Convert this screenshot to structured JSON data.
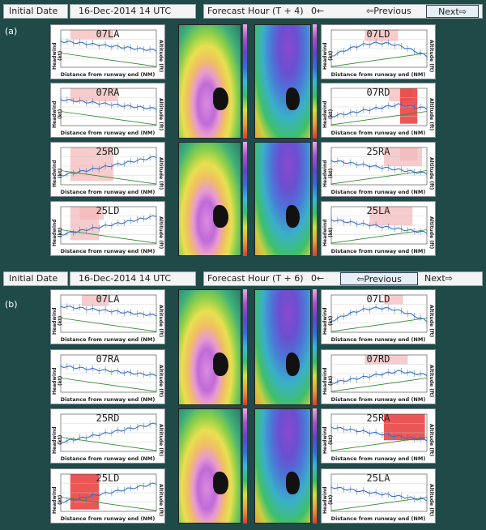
{
  "panels": [
    {
      "letter": "(a)",
      "initial_label": "Initial Date",
      "initial_value": "16-Dec-2014 14 UTC",
      "forecast_label": "Forecast Hour (T + 4)",
      "forecast_index": "0←",
      "prev_label": "⇦Previous",
      "next_label": "Next⇨",
      "runways": {
        "r1": "07LA",
        "r2": "07RA",
        "r3": "25RD",
        "r4": "25LD",
        "r5": "07LD",
        "r6": "07RD",
        "r7": "25RA",
        "r8": "25LA"
      }
    },
    {
      "letter": "(b)",
      "initial_label": "Initial Date",
      "initial_value": "16-Dec-2014 14 UTC",
      "forecast_label": "Forecast Hour (T + 6)",
      "forecast_index": "0←",
      "prev_label": "⇦Previous",
      "next_label": "Next⇨",
      "runways": {
        "r1": "07LA",
        "r2": "07RA",
        "r3": "25RD",
        "r4": "25LD",
        "r5": "07LD",
        "r6": "07RD",
        "r7": "25RA",
        "r8": "25LA"
      }
    }
  ],
  "axis": {
    "xlabel": "Distance from runway end (NM)",
    "ylabel": "Headwind (kt)",
    "y2label": "Altitude (ft)"
  },
  "colors": {
    "panel_bg": "#1f4a48",
    "shading": "#f4b6b6",
    "shading_strong": "#e83a3a",
    "trace": "#3a6fc4",
    "altitude_line": "#2d8a2d"
  }
}
